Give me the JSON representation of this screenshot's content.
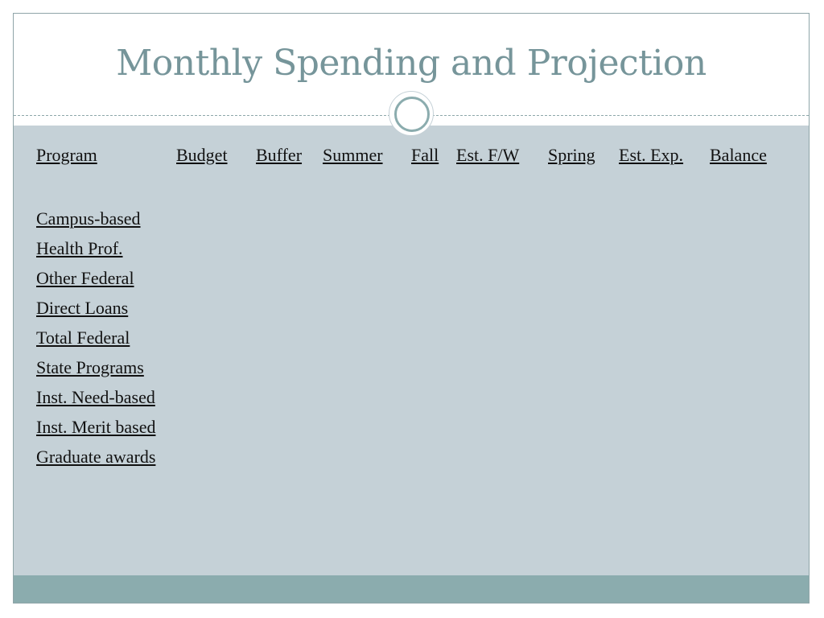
{
  "slide": {
    "title": "Monthly Spending and Projection",
    "table": {
      "headers": [
        "Program",
        "Budget",
        "Buffer",
        "Summer",
        "Fall",
        "Est. F/W",
        "Spring",
        "Est. Exp.",
        "Balance"
      ],
      "rows": [
        "Campus-based",
        "Health Prof.",
        "Other Federal",
        "Direct Loans",
        "Total Federal",
        "State Programs",
        "Inst. Need-based",
        "Inst. Merit based",
        "Graduate awards"
      ]
    }
  },
  "colors": {
    "title": "#76959a",
    "content_background": "#c5d1d7",
    "footer_band": "#8bacae",
    "border": "#8fa5a8",
    "text": "#111111"
  }
}
